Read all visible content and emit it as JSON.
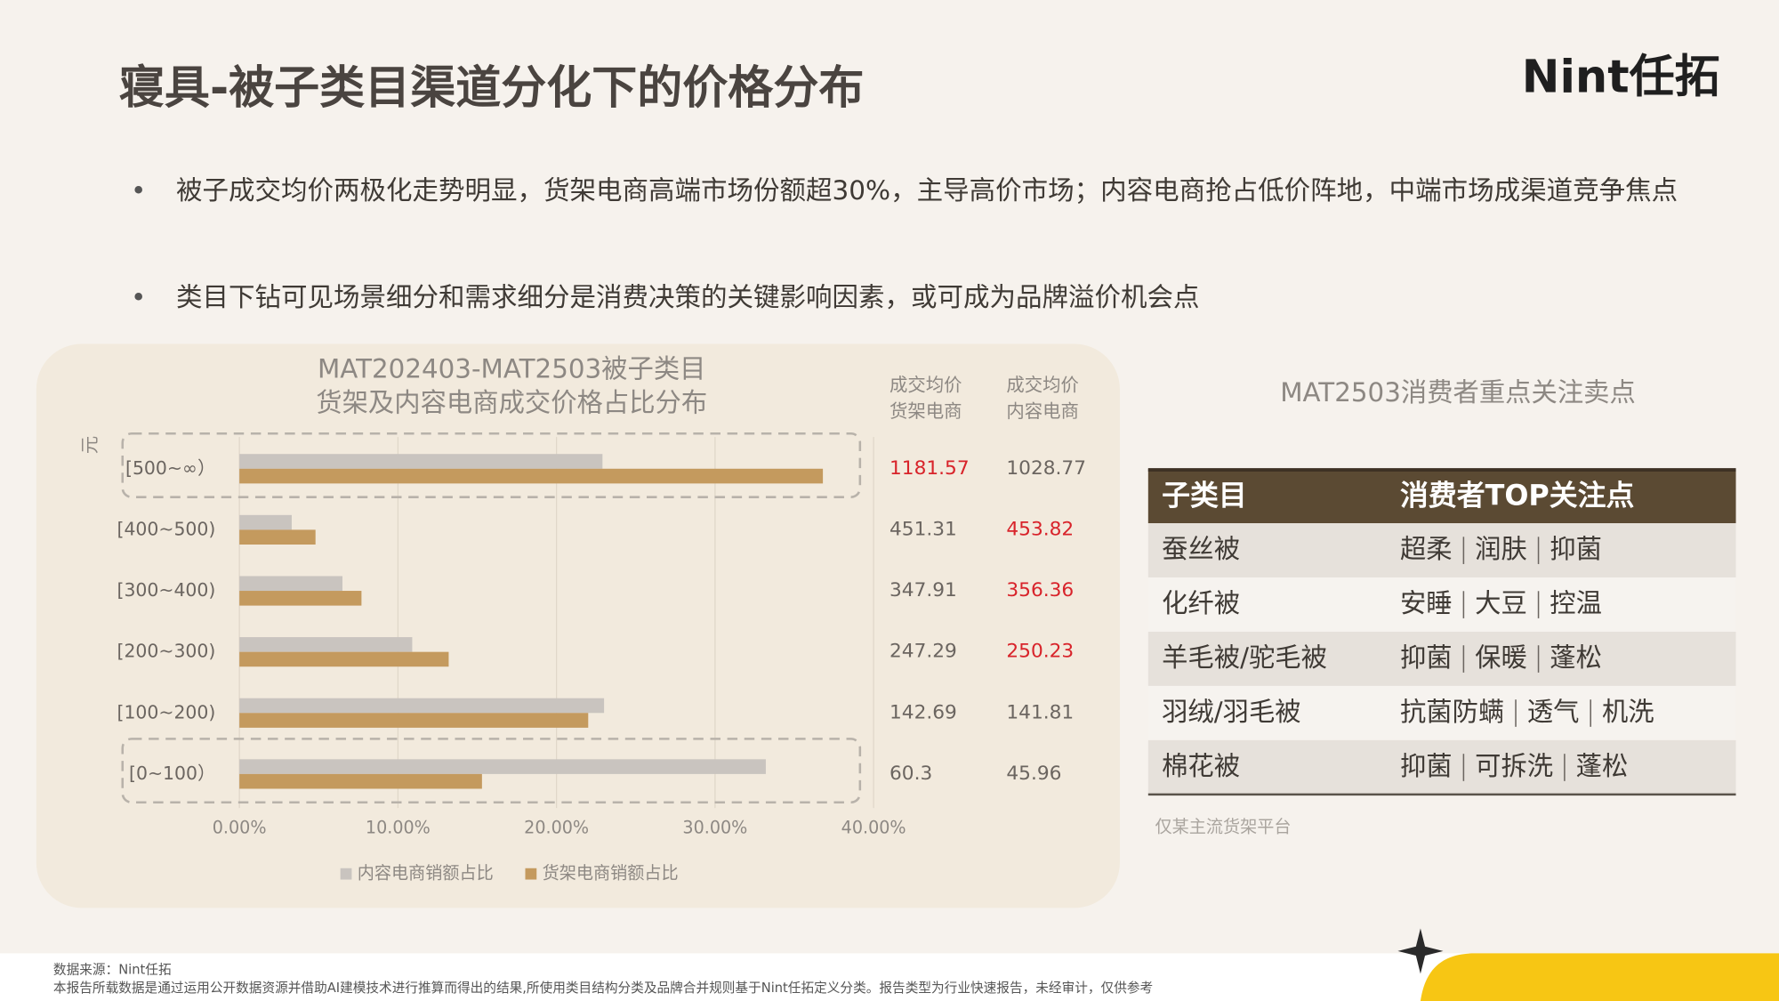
{
  "header": {
    "title": "寝具-被子类目渠道分化下的价格分布",
    "logo": "Nint任拓"
  },
  "bullets": [
    "被子成交均价两极化走势明显，货架电商高端市场份额超30%，主导高价市场；内容电商抢占低价阵地，中端市场成渠道竞争焦点",
    "类目下钻可见场景细分和需求细分是消费决策的关键影响因素，或可成为品牌溢价机会点"
  ],
  "chart_data": {
    "type": "bar",
    "orientation": "horizontal",
    "title": [
      "MAT202403-MAT2503被子类目",
      "货架及内容电商成交价格占比分布"
    ],
    "y_label": "元",
    "categories": [
      "[500~∞）",
      "[400~500)",
      "[300~400)",
      "[200~300)",
      "[100~200)",
      "[0~100）"
    ],
    "series": [
      {
        "name": "内容电商销额占比",
        "color": "#c9c4bf",
        "values": [
          22.9,
          3.3,
          6.5,
          10.9,
          23.0,
          33.2
        ]
      },
      {
        "name": "货架电商销额占比",
        "color": "#c49a5e",
        "values": [
          36.8,
          4.8,
          7.7,
          13.2,
          22.0,
          15.3
        ]
      }
    ],
    "xlim": [
      0,
      40
    ],
    "xticks": [
      {
        "value": 0,
        "label": "0.00%"
      },
      {
        "value": 10,
        "label": "10.00%"
      },
      {
        "value": 20,
        "label": "20.00%"
      },
      {
        "value": 30,
        "label": "30.00%"
      },
      {
        "value": 40,
        "label": "40.00%"
      }
    ],
    "grid": true,
    "legend": "bottom"
  },
  "price_table": {
    "highlight_color": "#d8232a",
    "columns": [
      {
        "header": [
          "成交均价",
          "货架电商"
        ],
        "values": [
          1181.57,
          451.31,
          347.91,
          247.29,
          142.69,
          60.3
        ],
        "highlight": [
          true,
          false,
          false,
          false,
          false,
          false
        ]
      },
      {
        "header": [
          "成交均价",
          "内容电商"
        ],
        "values": [
          1028.77,
          453.82,
          356.36,
          250.23,
          141.81,
          45.96
        ],
        "highlight": [
          false,
          true,
          true,
          true,
          false,
          false
        ]
      }
    ]
  },
  "table": {
    "title": "MAT2503消费者重点关注卖点",
    "headers": [
      "子类目",
      "消费者TOP关注点"
    ],
    "rows": [
      [
        "蚕丝被",
        [
          "超柔",
          "润肤",
          "抑菌"
        ]
      ],
      [
        "化纤被",
        [
          "安睡",
          "大豆",
          "控温"
        ]
      ],
      [
        "羊毛被/驼毛被",
        [
          "抑菌",
          "保暖",
          "蓬松"
        ]
      ],
      [
        "羽绒/羽毛被",
        [
          "抗菌防螨",
          "透气",
          "机洗"
        ]
      ],
      [
        "棉花被",
        [
          "抑菌",
          "可拆洗",
          "蓬松"
        ]
      ]
    ],
    "note": "仅某主流货架平台"
  },
  "footer": [
    "数据来源：Nint任拓",
    "本报告所载数据是通过运用公开数据资源并借助AI建模技术进行推算而得出的结果,所使用类目结构分类及品牌合并规则基于Nint任拓定义分类。报告类型为行业快速报告，未经审计，仅供参考"
  ]
}
